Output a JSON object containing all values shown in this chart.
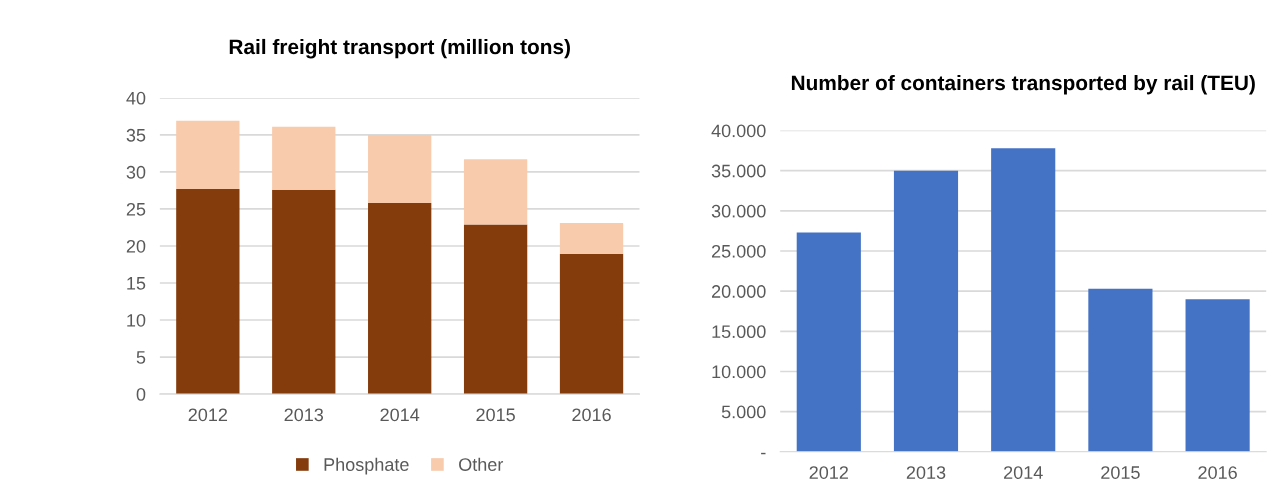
{
  "chart_data": [
    {
      "type": "bar",
      "title": "Rail freight transport (million tons)",
      "categories": [
        "2012",
        "2013",
        "2014",
        "2015",
        "2016"
      ],
      "stacked": true,
      "series": [
        {
          "name": "Phosphate",
          "color": "#843c0c",
          "values": [
            27.7,
            27.6,
            25.8,
            22.9,
            18.9
          ]
        },
        {
          "name": "Other",
          "color": "#f8cbad",
          "values": [
            9.2,
            8.5,
            9.2,
            8.8,
            4.2
          ]
        }
      ],
      "ylim": [
        0,
        40
      ],
      "yticks": [
        0,
        5,
        10,
        15,
        20,
        25,
        30,
        35,
        40
      ],
      "grid": "y",
      "legend": "bottom"
    },
    {
      "type": "bar",
      "title": "Number of containers transported by rail (TEU)",
      "categories": [
        "2012",
        "2013",
        "2014",
        "2015",
        "2016"
      ],
      "series": [
        {
          "color": "#4472c4",
          "values": [
            27300,
            35000,
            37800,
            20300,
            19000
          ]
        }
      ],
      "ylim": [
        0,
        40000
      ],
      "yticks": [
        {
          "value": 0,
          "label": "-"
        },
        {
          "value": 5000,
          "label": "5.000"
        },
        {
          "value": 10000,
          "label": "10.000"
        },
        {
          "value": 15000,
          "label": "15.000"
        },
        {
          "value": 20000,
          "label": "20.000"
        },
        {
          "value": 25000,
          "label": "25.000"
        },
        {
          "value": 30000,
          "label": "30.000"
        },
        {
          "value": 35000,
          "label": "35.000"
        },
        {
          "value": 40000,
          "label": "40.000"
        }
      ],
      "grid": "y"
    }
  ]
}
